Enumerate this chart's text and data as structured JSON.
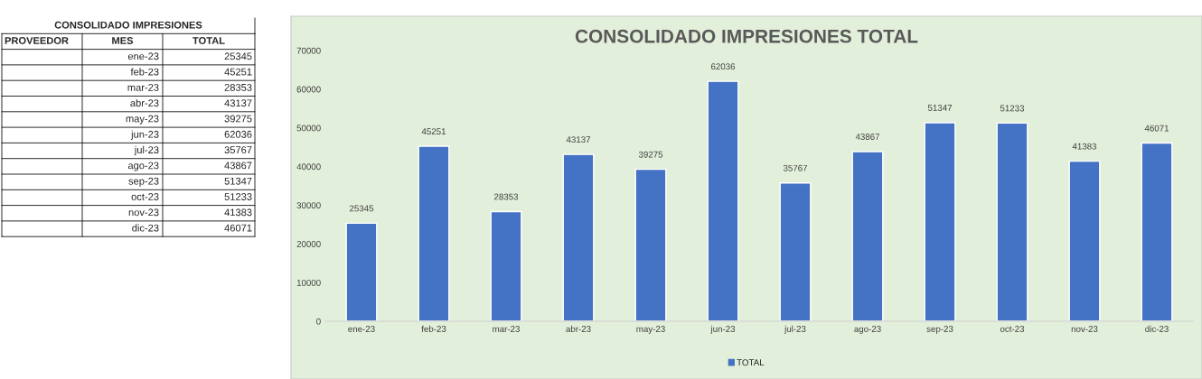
{
  "chart_data": [
    {
      "type": "other",
      "title": "CONSOLIDADO IMPRESIONES",
      "annotations": [
        "PROVEEDOR",
        "MES",
        "TOTAL"
      ],
      "categories": [
        "ene-23",
        "feb-23",
        "mar-23",
        "abr-23",
        "may-23",
        "jun-23",
        "jul-23",
        "ago-23",
        "sep-23",
        "oct-23",
        "nov-23",
        "dic-23"
      ],
      "values": [
        25345,
        45251,
        28353,
        43137,
        39275,
        62036,
        35767,
        43867,
        51347,
        51233,
        41383,
        46071
      ],
      "data_labels": true
    },
    {
      "type": "bar",
      "title": "CONSOLIDADO IMPRESIONES TOTAL",
      "categories": [
        "ene-23",
        "feb-23",
        "mar-23",
        "abr-23",
        "may-23",
        "jun-23",
        "jul-23",
        "ago-23",
        "sep-23",
        "oct-23",
        "nov-23",
        "dic-23"
      ],
      "series": [
        {
          "name": "TOTAL",
          "color": "#4472c4",
          "values": [
            25345,
            45251,
            28353,
            43137,
            39275,
            62036,
            35767,
            43867,
            51347,
            51233,
            41383,
            46071
          ]
        }
      ],
      "ylim": [
        0,
        70000
      ],
      "yticks": [
        0,
        10000,
        20000,
        30000,
        40000,
        50000,
        60000,
        70000
      ],
      "grid": false,
      "legend": "bottom",
      "data_labels": true
    }
  ]
}
